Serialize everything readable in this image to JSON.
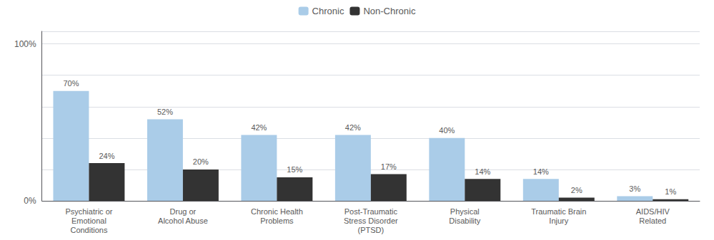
{
  "chart_data": {
    "type": "bar",
    "categories": [
      "Psychiatric or\nEmotional\nConditions",
      "Drug or\nAlcohol Abuse",
      "Chronic Health\nProblems",
      "Post-Traumatic\nStress Disorder\n(PTSD)",
      "Physical\nDisability",
      "Traumatic Brain\nInjury",
      "AIDS/HIV\nRelated"
    ],
    "series": [
      {
        "name": "Chronic",
        "color": "#aacce8",
        "values": [
          70,
          52,
          42,
          42,
          40,
          14,
          3
        ],
        "value_labels": [
          "70%",
          "52%",
          "42%",
          "42%",
          "40%",
          "14%",
          "3%"
        ]
      },
      {
        "name": "Non-Chronic",
        "color": "#333333",
        "values": [
          24,
          20,
          15,
          17,
          14,
          2,
          1
        ],
        "value_labels": [
          "24%",
          "20%",
          "15%",
          "17%",
          "14%",
          "2%",
          "1%"
        ]
      }
    ],
    "ylim": [
      0,
      108
    ],
    "yticks": [
      {
        "value": 0,
        "label": "0%"
      },
      {
        "value": 20,
        "label": ""
      },
      {
        "value": 40,
        "label": ""
      },
      {
        "value": 60,
        "label": ""
      },
      {
        "value": 80,
        "label": ""
      },
      {
        "value": 100,
        "label": "100%"
      }
    ],
    "grid": true,
    "legend": "top",
    "data_labels": true
  }
}
